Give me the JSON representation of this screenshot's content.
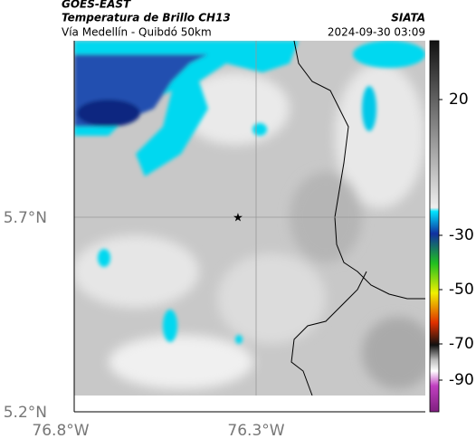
{
  "header": {
    "title": "GOES-EAST",
    "subtitle": "Temperatura de Brillo CH13",
    "route": "Vía Medellín - Quibdó 50km",
    "source": "SIATA",
    "datetime": "2024-09-30 03:09"
  },
  "axes": {
    "lat_labels": [
      "5.7°N",
      "5.2°N"
    ],
    "lon_labels": [
      "76.8°W",
      "76.3°W"
    ]
  },
  "colorbar": {
    "ticks": [
      20,
      -30,
      -50,
      -70,
      -90
    ]
  }
}
